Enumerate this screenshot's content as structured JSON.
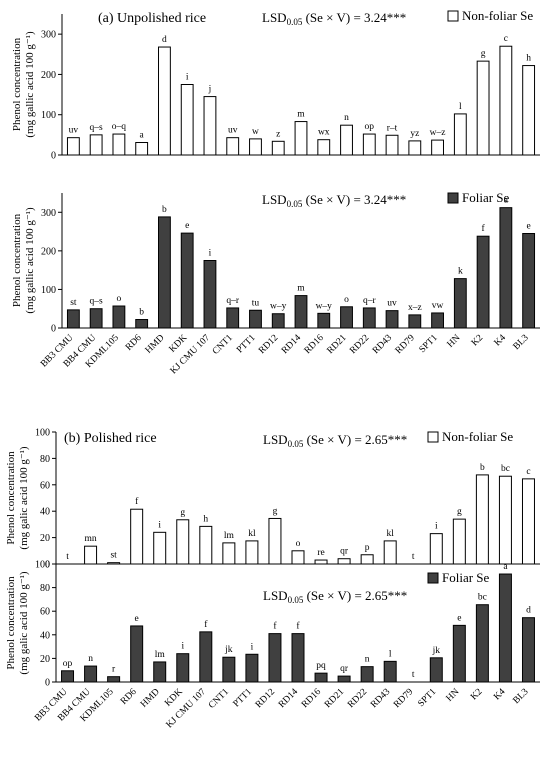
{
  "chart_data": [
    {
      "type": "bar",
      "section_title": "(a) Unpolished rice",
      "lsd": {
        "prefix": "LSD",
        "sub": "0.05",
        "suffix": " (Se × V) = 3.24***"
      },
      "legend": "Non-foliar Se",
      "fill": "#ffffff",
      "ylabel_line1": "Phenol concentration",
      "ylabel_line2": "(mg gallic acid 100 g⁻¹)",
      "ylim": [
        0,
        350
      ],
      "yticks": [
        0,
        100,
        200,
        300
      ],
      "categories": [
        "BB3 CMU",
        "BB4 CMU",
        "KDML105",
        "RD6",
        "HMD",
        "KDK",
        "KJ CMU 107",
        "CNT1",
        "PTT1",
        "RD12",
        "RD14",
        "RD16",
        "RD21",
        "RD22",
        "RD43",
        "RD79",
        "SPT1",
        "HN",
        "K2",
        "K4",
        "BL3"
      ],
      "show_categories": false,
      "values": [
        43,
        50,
        52,
        31,
        268,
        175,
        145,
        43,
        40,
        34,
        83,
        38,
        74,
        52,
        49,
        35,
        37,
        102,
        233,
        270,
        222
      ],
      "letters": [
        "uv",
        "q–s",
        "o–q",
        "a",
        "d",
        "i",
        "j",
        "uv",
        "w",
        "z",
        "m",
        "wx",
        "n",
        "op",
        "r–t",
        "yz",
        "w–z",
        "l",
        "g",
        "c",
        "h"
      ]
    },
    {
      "type": "bar",
      "lsd": {
        "prefix": "LSD",
        "sub": "0.05",
        "suffix": " (Se × V) = 3.24***"
      },
      "legend": "Foliar Se",
      "fill": "#404040",
      "ylabel_line1": "Phenol concentration",
      "ylabel_line2": "(mg gallic acid 100 g⁻¹)",
      "ylim": [
        0,
        350
      ],
      "yticks": [
        0,
        100,
        200,
        300
      ],
      "categories": [
        "BB3 CMU",
        "BB4 CMU",
        "KDML105",
        "RD6",
        "HMD",
        "KDK",
        "KJ CMU 107",
        "CNT1",
        "PTT1",
        "RD12",
        "RD14",
        "RD16",
        "RD21",
        "RD22",
        "RD43",
        "RD79",
        "SPT1",
        "HN",
        "K2",
        "K4",
        "BL3"
      ],
      "show_categories": true,
      "values": [
        47,
        50,
        57,
        22,
        288,
        246,
        175,
        52,
        46,
        37,
        84,
        38,
        55,
        52,
        45,
        34,
        39,
        128,
        238,
        312,
        245
      ],
      "letters": [
        "st",
        "q–s",
        "o",
        "b",
        "b",
        "e",
        "i",
        "q–r",
        "tu",
        "w–y",
        "m",
        "w–y",
        "o",
        "q–r",
        "uv",
        "x–z",
        "vw",
        "k",
        "f",
        "a",
        "e"
      ]
    },
    {
      "type": "bar",
      "section_title": "(b) Polished rice",
      "lsd": {
        "prefix": "LSD",
        "sub": "0.05",
        "suffix": " (Se × V) = 2.65***"
      },
      "legend": "Non-foliar Se",
      "fill": "#ffffff",
      "ylabel_line1": "Phenol concentration",
      "ylabel_line2": "(mg galic acid 100 g⁻¹)",
      "ylim": [
        0,
        100
      ],
      "yticks": [
        0,
        20,
        40,
        60,
        80,
        100
      ],
      "categories": [
        "BB3 CMU",
        "BB4 CMU",
        "KDML105",
        "RD6",
        "HMD",
        "KDK",
        "KJ CMU 107",
        "CNT1",
        "PTT1",
        "RD12",
        "RD14",
        "RD16",
        "RD21",
        "RD22",
        "RD43",
        "RD79",
        "SPT1",
        "HN",
        "K2",
        "K4",
        "BL3"
      ],
      "show_categories": false,
      "values": [
        0,
        13.5,
        1,
        41.5,
        24,
        33.5,
        28.5,
        16,
        17.5,
        34.5,
        10,
        3,
        4,
        7,
        17.5,
        0,
        23,
        34,
        67.5,
        66.5,
        64.5
      ],
      "letters": [
        "t",
        "mn",
        "st",
        "f",
        "i",
        "g",
        "h",
        "lm",
        "kl",
        "g",
        "o",
        "re",
        "qr",
        "p",
        "kl",
        "t",
        "i",
        "g",
        "b",
        "bc",
        "c"
      ]
    },
    {
      "type": "bar",
      "lsd": {
        "prefix": "LSD",
        "sub": "0.05",
        "suffix": " (Se × V) = 2.65***"
      },
      "legend": "Foliar Se",
      "fill": "#404040",
      "ylabel_line1": "Phenol concentration",
      "ylabel_line2": "(mg galic acid 100 g⁻¹)",
      "ylim": [
        0,
        100
      ],
      "yticks": [
        0,
        20,
        40,
        60,
        80,
        100
      ],
      "categories": [
        "BB3 CMU",
        "BB4 CMU",
        "KDML105",
        "RD6",
        "HMD",
        "KDK",
        "KJ CMU 107",
        "CNT1",
        "PTT1",
        "RD12",
        "RD14",
        "RD16",
        "RD21",
        "RD22",
        "RD43",
        "RD79",
        "SPT1",
        "HN",
        "K2",
        "K4",
        "BL3"
      ],
      "show_categories": true,
      "values": [
        9.5,
        13.5,
        4.5,
        47.5,
        17,
        24,
        42.5,
        21,
        23.5,
        41,
        41,
        7.5,
        5,
        13,
        17.5,
        0,
        20.5,
        48,
        65.5,
        91.5,
        54.5
      ],
      "letters": [
        "op",
        "n",
        "r",
        "e",
        "lm",
        "i",
        "f",
        "jk",
        "i",
        "f",
        "f",
        "pq",
        "qr",
        "n",
        "l",
        "t",
        "jk",
        "e",
        "bc",
        "a",
        "d"
      ]
    }
  ]
}
